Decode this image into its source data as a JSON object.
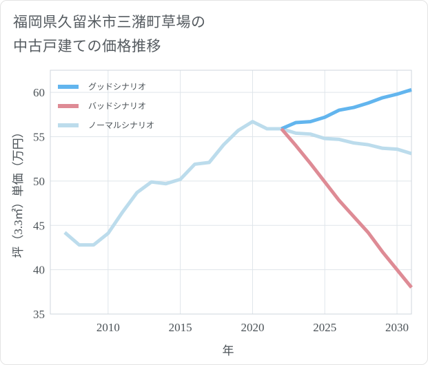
{
  "title_line1": "福岡県久留米市三潴町草場の",
  "title_line2": "中古戸建ての価格推移",
  "chart_data": {
    "type": "line",
    "title": "福岡県久留米市三潴町草場の中古戸建ての価格推移",
    "xlabel": "年",
    "ylabel": "坪（3.3㎡）単価（万円）",
    "xlim": [
      2006,
      2031
    ],
    "ylim": [
      35,
      62.5
    ],
    "x_ticks": [
      2010,
      2015,
      2020,
      2025,
      2030
    ],
    "y_ticks": [
      35,
      40,
      45,
      50,
      55,
      60
    ],
    "grid": true,
    "legend_position": "top-left",
    "series": [
      {
        "name": "グッドシナリオ",
        "color": "#62b5ee",
        "x": [
          2022,
          2023,
          2024,
          2025,
          2026,
          2027,
          2028,
          2029,
          2030,
          2031
        ],
        "y": [
          55.9,
          56.6,
          56.7,
          57.2,
          58.0,
          58.3,
          58.8,
          59.4,
          59.8,
          60.3
        ]
      },
      {
        "name": "バッドシナリオ",
        "color": "#de8b95",
        "x": [
          2022,
          2023,
          2024,
          2025,
          2026,
          2027,
          2028,
          2029,
          2030,
          2031
        ],
        "y": [
          55.9,
          54.0,
          52.0,
          49.9,
          47.8,
          46.0,
          44.2,
          42.0,
          40.0,
          38.0
        ]
      },
      {
        "name": "ノーマルシナリオ",
        "color": "#bcdcec",
        "x": [
          2007,
          2008,
          2009,
          2010,
          2011,
          2012,
          2013,
          2014,
          2015,
          2016,
          2017,
          2018,
          2019,
          2020,
          2021,
          2022,
          2023,
          2024,
          2025,
          2026,
          2027,
          2028,
          2029,
          2030,
          2031
        ],
        "y": [
          44.2,
          42.8,
          42.8,
          44.1,
          46.5,
          48.7,
          49.9,
          49.7,
          50.2,
          51.9,
          52.1,
          54.1,
          55.7,
          56.7,
          55.9,
          55.9,
          55.4,
          55.3,
          54.8,
          54.7,
          54.3,
          54.1,
          53.7,
          53.6,
          53.1
        ]
      }
    ]
  }
}
